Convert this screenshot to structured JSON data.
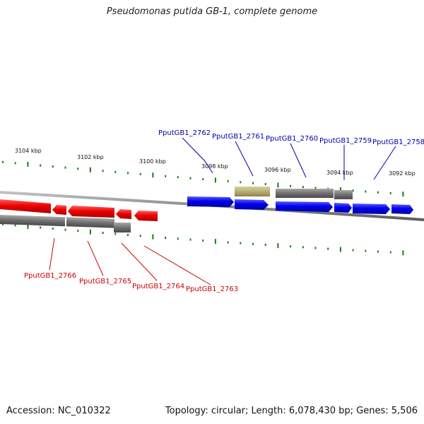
{
  "title": "Pseudomonas putida GB-1, complete genome",
  "footer": {
    "accession": "Accession: NC_010322",
    "info": "Topology: circular; Length: 6,078,430 bp; Genes: 5,506"
  },
  "colors": {
    "forward_gene": "#0000ee",
    "reverse_gene": "#ee0000",
    "other_feature": "#b8b070",
    "cds_gray": "#707070",
    "tick": "#1a7a1a",
    "backbone": "#8a8a8a",
    "label_blue": "#0000aa",
    "label_red": "#cc0000"
  },
  "kbp_labels": [
    "3104 kbp",
    "3102 kbp",
    "3100 kbp",
    "3098 kbp",
    "3096 kbp",
    "3094 kbp",
    "3092 kbp"
  ],
  "gene_labels": {
    "top": [
      "PputGB1_2762",
      "PputGB1_2761",
      "PputGB1_2760",
      "PputGB1_2759",
      "PputGB1_2758"
    ],
    "bottom": [
      "PputGB1_2766",
      "PputGB1_2765",
      "PputGB1_2764",
      "PputGB1_2763"
    ]
  }
}
